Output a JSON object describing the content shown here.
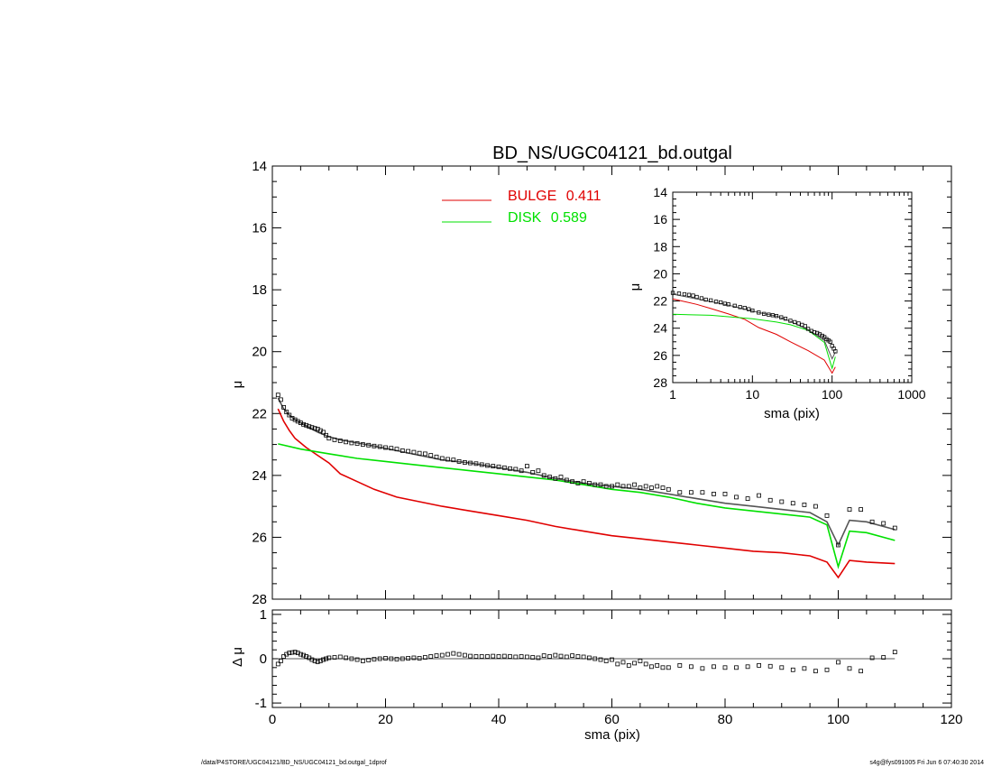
{
  "page": {
    "footer_left": "/data/P4STORE/UGC04121/BD_NS/UGC04121_bd.outgal_1dprof",
    "footer_right": "s4g@fys091005  Fri Jun  6 07:40:30 2014"
  },
  "colors": {
    "bulge": "#e00000",
    "disk": "#00e000",
    "model": "#555555",
    "data": "#000000"
  },
  "chart_data": [
    {
      "id": "main",
      "type": "line",
      "title": "BD_NS/UGC04121_bd.outgal",
      "ylabel": "μ",
      "xlim": [
        0,
        120
      ],
      "ylim": [
        28,
        14
      ],
      "y_inverted": true,
      "xticks": [
        0,
        20,
        40,
        60,
        80,
        100,
        120
      ],
      "yticks": [
        14,
        16,
        18,
        20,
        22,
        24,
        26,
        28
      ],
      "legend": [
        {
          "label": "BULGE",
          "value": "0.411",
          "color": "#e00000"
        },
        {
          "label": "DISK",
          "value": "0.589",
          "color": "#00e000"
        }
      ],
      "series": [
        {
          "name": "BULGE",
          "kind": "line",
          "color": "#e00000",
          "x": [
            1,
            2,
            3,
            4,
            5,
            6,
            8,
            10,
            12,
            15,
            18,
            22,
            26,
            30,
            35,
            40,
            45,
            50,
            55,
            60,
            65,
            70,
            75,
            80,
            85,
            90,
            95,
            98,
            100,
            102,
            105,
            110
          ],
          "y": [
            21.85,
            22.25,
            22.55,
            22.8,
            22.95,
            23.1,
            23.35,
            23.6,
            23.95,
            24.2,
            24.45,
            24.7,
            24.85,
            25.0,
            25.15,
            25.3,
            25.45,
            25.65,
            25.8,
            25.95,
            26.05,
            26.15,
            26.25,
            26.35,
            26.45,
            26.5,
            26.6,
            26.8,
            27.3,
            26.75,
            26.8,
            26.85
          ]
        },
        {
          "name": "DISK",
          "kind": "line",
          "color": "#00e000",
          "x": [
            1,
            5,
            10,
            15,
            20,
            25,
            30,
            35,
            40,
            45,
            50,
            55,
            60,
            65,
            70,
            75,
            80,
            85,
            90,
            95,
            98,
            100,
            102,
            105,
            110
          ],
          "y": [
            22.98,
            23.15,
            23.3,
            23.45,
            23.55,
            23.65,
            23.75,
            23.85,
            23.95,
            24.05,
            24.15,
            24.3,
            24.45,
            24.55,
            24.7,
            24.9,
            25.05,
            25.15,
            25.25,
            25.35,
            25.6,
            26.95,
            25.8,
            25.85,
            26.1
          ]
        },
        {
          "name": "",
          "kind": "line",
          "color": "#555555",
          "x": [
            1,
            2,
            3,
            4,
            5,
            6,
            8,
            10,
            12,
            15,
            18,
            22,
            26,
            30,
            35,
            40,
            45,
            50,
            55,
            60,
            65,
            70,
            75,
            80,
            85,
            90,
            95,
            98,
            100,
            102,
            105,
            110
          ],
          "y": [
            21.5,
            21.85,
            22.05,
            22.2,
            22.3,
            22.4,
            22.6,
            22.75,
            22.85,
            22.95,
            23.05,
            23.2,
            23.35,
            23.5,
            23.6,
            23.75,
            23.9,
            24.1,
            24.25,
            24.35,
            24.45,
            24.6,
            24.75,
            24.9,
            25.0,
            25.1,
            25.2,
            25.5,
            26.25,
            25.45,
            25.5,
            25.75
          ]
        },
        {
          "name": "",
          "kind": "points",
          "color": "#000000",
          "x": [
            1,
            1.5,
            2,
            2.5,
            3,
            3.5,
            4,
            4.5,
            5,
            5.5,
            6,
            6.5,
            7,
            7.5,
            8,
            8.5,
            9,
            9.5,
            10,
            11,
            12,
            13,
            14,
            15,
            16,
            17,
            18,
            19,
            20,
            21,
            22,
            23,
            24,
            25,
            26,
            27,
            28,
            29,
            30,
            31,
            32,
            33,
            34,
            35,
            36,
            37,
            38,
            39,
            40,
            41,
            42,
            43,
            44,
            45,
            46,
            47,
            48,
            49,
            50,
            51,
            52,
            53,
            54,
            55,
            56,
            57,
            58,
            59,
            60,
            61,
            62,
            63,
            64,
            65,
            66,
            67,
            68,
            69,
            70,
            72,
            74,
            76,
            78,
            80,
            82,
            84,
            86,
            88,
            90,
            92,
            94,
            96,
            98,
            100,
            102,
            104,
            106,
            108,
            110
          ],
          "y": [
            21.4,
            21.55,
            21.8,
            21.95,
            22.05,
            22.15,
            22.2,
            22.25,
            22.3,
            22.35,
            22.38,
            22.42,
            22.45,
            22.48,
            22.5,
            22.55,
            22.6,
            22.7,
            22.8,
            22.85,
            22.88,
            22.92,
            22.95,
            22.97,
            23.0,
            23.02,
            23.05,
            23.07,
            23.1,
            23.12,
            23.15,
            23.2,
            23.22,
            23.25,
            23.28,
            23.3,
            23.35,
            23.4,
            23.45,
            23.48,
            23.5,
            23.55,
            23.58,
            23.6,
            23.62,
            23.65,
            23.68,
            23.7,
            23.72,
            23.75,
            23.78,
            23.8,
            23.85,
            23.7,
            23.9,
            23.85,
            24.0,
            24.05,
            24.1,
            24.05,
            24.15,
            24.2,
            24.25,
            24.2,
            24.25,
            24.3,
            24.3,
            24.35,
            24.35,
            24.3,
            24.35,
            24.35,
            24.3,
            24.4,
            24.35,
            24.4,
            24.35,
            24.4,
            24.45,
            24.55,
            24.55,
            24.55,
            24.6,
            24.6,
            24.7,
            24.75,
            24.65,
            24.8,
            24.85,
            24.9,
            24.95,
            25.0,
            25.3,
            26.25,
            25.1,
            25.1,
            25.5,
            25.55,
            25.7
          ]
        }
      ]
    },
    {
      "id": "residual",
      "type": "scatter",
      "ylabel": "Δ μ",
      "xlabel": "sma (pix)",
      "xlim": [
        0,
        120
      ],
      "ylim": [
        -1.1,
        1.1
      ],
      "xticks": [
        0,
        20,
        40,
        60,
        80,
        100,
        120
      ],
      "yticks": [
        1,
        0,
        -1
      ],
      "series": [
        {
          "name": "",
          "kind": "points",
          "color": "#000000",
          "x": [
            1,
            1.5,
            2,
            2.5,
            3,
            3.5,
            4,
            4.5,
            5,
            5.5,
            6,
            6.5,
            7,
            7.5,
            8,
            8.5,
            9,
            9.5,
            10,
            11,
            12,
            13,
            14,
            15,
            16,
            17,
            18,
            19,
            20,
            21,
            22,
            23,
            24,
            25,
            26,
            27,
            28,
            29,
            30,
            31,
            32,
            33,
            34,
            35,
            36,
            37,
            38,
            39,
            40,
            41,
            42,
            43,
            44,
            45,
            46,
            47,
            48,
            49,
            50,
            51,
            52,
            53,
            54,
            55,
            56,
            57,
            58,
            59,
            60,
            61,
            62,
            63,
            64,
            65,
            66,
            67,
            68,
            69,
            70,
            72,
            74,
            76,
            78,
            80,
            82,
            84,
            86,
            88,
            90,
            92,
            94,
            96,
            98,
            100,
            102,
            104,
            106,
            108,
            110
          ],
          "y": [
            -0.12,
            -0.05,
            0.05,
            0.1,
            0.13,
            0.14,
            0.15,
            0.13,
            0.1,
            0.08,
            0.05,
            0.02,
            -0.02,
            -0.05,
            -0.07,
            -0.05,
            -0.02,
            0.0,
            0.02,
            0.03,
            0.04,
            0.02,
            0.0,
            -0.02,
            -0.05,
            -0.03,
            -0.01,
            0.0,
            0.01,
            0.0,
            -0.01,
            0.0,
            0.01,
            0.02,
            0.01,
            0.03,
            0.05,
            0.07,
            0.08,
            0.1,
            0.12,
            0.1,
            0.08,
            0.06,
            0.05,
            0.05,
            0.05,
            0.06,
            0.05,
            0.06,
            0.05,
            0.04,
            0.05,
            0.04,
            0.03,
            0.02,
            0.07,
            0.05,
            0.08,
            0.06,
            0.04,
            0.07,
            0.05,
            0.04,
            0.02,
            0.0,
            -0.02,
            -0.05,
            -0.02,
            -0.12,
            -0.08,
            -0.15,
            -0.1,
            -0.05,
            -0.12,
            -0.18,
            -0.15,
            -0.2,
            -0.2,
            -0.15,
            -0.18,
            -0.22,
            -0.18,
            -0.2,
            -0.2,
            -0.18,
            -0.15,
            -0.17,
            -0.2,
            -0.25,
            -0.22,
            -0.28,
            -0.25,
            -0.08,
            -0.22,
            -0.28,
            0.02,
            0.03,
            0.15
          ]
        }
      ]
    },
    {
      "id": "inset",
      "type": "line",
      "xlabel": "sma (pix)",
      "ylabel": "μ",
      "x_scale": "log",
      "xlim": [
        1,
        1000
      ],
      "ylim": [
        28,
        14
      ],
      "y_inverted": true,
      "xticks": [
        1,
        10,
        100,
        1000
      ],
      "yticks": [
        14,
        16,
        18,
        20,
        22,
        24,
        26,
        28
      ],
      "series": [
        {
          "name": "",
          "kind": "line",
          "color": "#e00000",
          "x": [
            1,
            2,
            3,
            5,
            8,
            12,
            20,
            30,
            50,
            80,
            100,
            110
          ],
          "y": [
            21.85,
            22.25,
            22.55,
            22.95,
            23.35,
            23.95,
            24.45,
            25.0,
            25.65,
            26.35,
            27.3,
            26.85
          ]
        },
        {
          "name": "",
          "kind": "line",
          "color": "#00e000",
          "x": [
            1,
            3,
            10,
            20,
            30,
            50,
            80,
            100,
            110
          ],
          "y": [
            22.98,
            23.05,
            23.3,
            23.55,
            23.75,
            24.15,
            25.05,
            26.95,
            26.1
          ]
        },
        {
          "name": "",
          "kind": "line",
          "color": "#555555",
          "x": [
            1,
            2,
            3,
            5,
            8,
            12,
            20,
            30,
            50,
            80,
            100,
            110
          ],
          "y": [
            21.5,
            21.85,
            22.05,
            22.3,
            22.6,
            22.85,
            23.1,
            23.5,
            24.1,
            24.9,
            26.25,
            25.75
          ]
        },
        {
          "name": "",
          "kind": "points",
          "color": "#000000",
          "x": [
            1,
            1.2,
            1.4,
            1.6,
            1.8,
            2,
            2.3,
            2.6,
            3,
            3.5,
            4,
            4.5,
            5,
            6,
            7,
            8,
            9,
            10,
            12,
            14,
            16,
            18,
            20,
            23,
            26,
            30,
            34,
            38,
            42,
            46,
            50,
            55,
            60,
            65,
            70,
            75,
            80,
            85,
            90,
            95,
            100,
            105,
            110
          ],
          "y": [
            21.4,
            21.45,
            21.5,
            21.55,
            21.6,
            21.7,
            21.8,
            21.9,
            21.95,
            22.05,
            22.1,
            22.2,
            22.25,
            22.35,
            22.45,
            22.5,
            22.6,
            22.7,
            22.85,
            22.95,
            23.0,
            23.05,
            23.1,
            23.2,
            23.3,
            23.45,
            23.55,
            23.65,
            23.75,
            23.85,
            24.05,
            24.2,
            24.3,
            24.35,
            24.45,
            24.55,
            24.65,
            24.8,
            24.9,
            25.0,
            25.3,
            25.5,
            25.7
          ]
        }
      ]
    }
  ]
}
